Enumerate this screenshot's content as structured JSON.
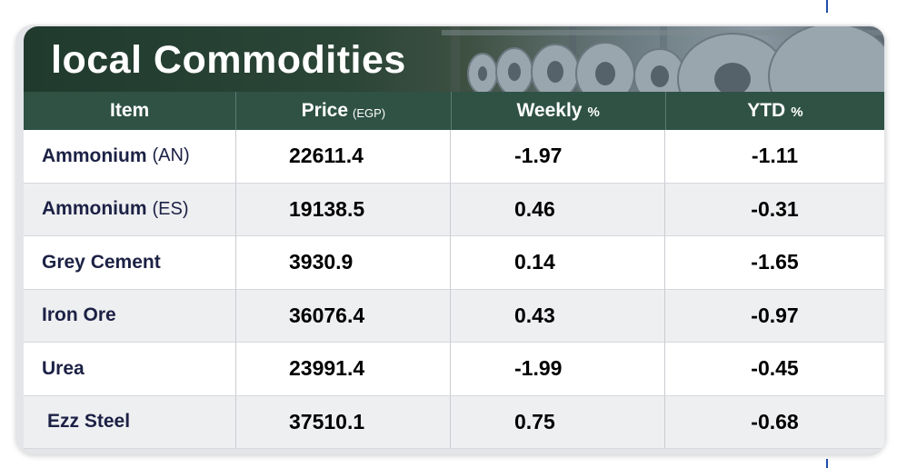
{
  "title": "local Commodities",
  "headers": {
    "item": "Item",
    "price": "Price",
    "price_unit": "(EGP)",
    "weekly": "Weekly",
    "weekly_unit": "%",
    "ytd": "YTD",
    "ytd_unit": "%"
  },
  "rows": [
    {
      "name": "Ammonium",
      "suffix": "(AN)",
      "price": "22611.4",
      "weekly": "-1.97",
      "ytd": "-1.11"
    },
    {
      "name": "Ammonium",
      "suffix": "(ES)",
      "price": "19138.5",
      "weekly": "0.46",
      "ytd": "-0.31"
    },
    {
      "name": "Grey Cement",
      "suffix": "",
      "price": "3930.9",
      "weekly": "0.14",
      "ytd": "-1.65"
    },
    {
      "name": "Iron Ore",
      "suffix": "",
      "price": "36076.4",
      "weekly": "0.43",
      "ytd": "-0.97"
    },
    {
      "name": "Urea",
      "suffix": "",
      "price": "23991.4",
      "weekly": "-1.99",
      "ytd": "-0.45"
    },
    {
      "name": "Ezz Steel",
      "suffix": "",
      "price": "37510.1",
      "weekly": "0.75",
      "ytd": "-0.68"
    }
  ],
  "colors": {
    "header_green": "#2f5245",
    "item_text": "#1c2145"
  }
}
